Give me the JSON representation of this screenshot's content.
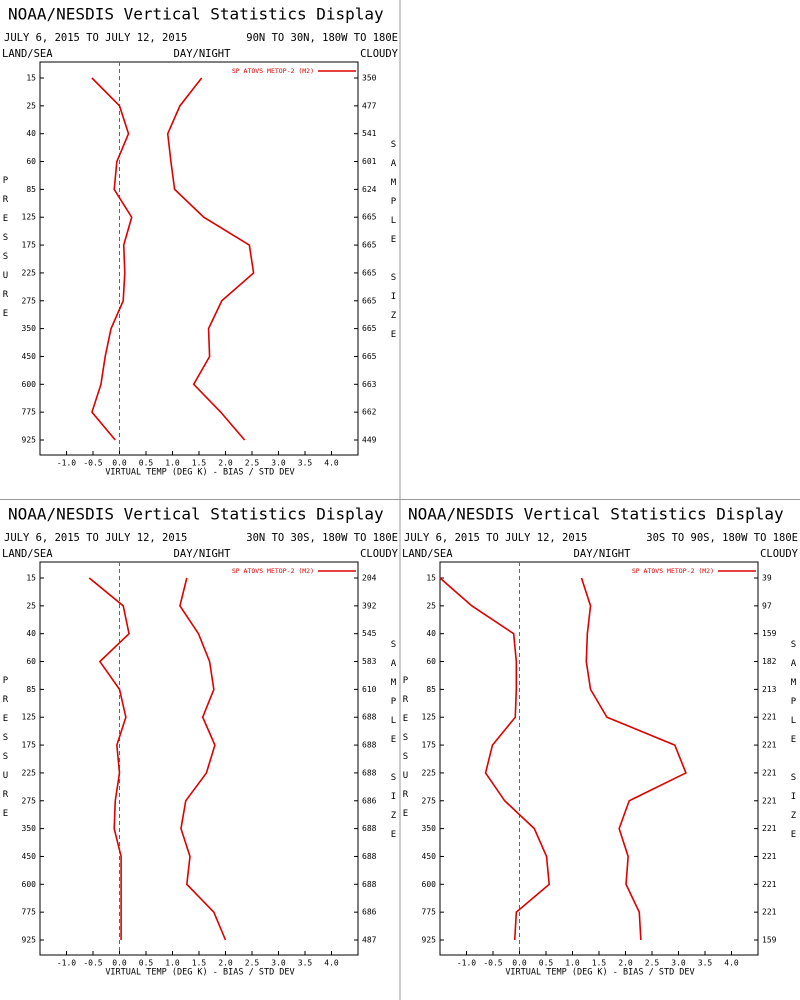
{
  "chart_data": [
    {
      "type": "line",
      "title": "NOAA/NESDIS Vertical Statistics Display",
      "date_range": "JULY 6, 2015 TO JULY 12, 2015",
      "region": "90N TO 30N, 180W TO 180E",
      "land_sea": "LAND/SEA",
      "day_night": "DAY/NIGHT",
      "cloud": "CLOUDY",
      "x_label": "VIRTUAL TEMP (DEG K) - BIAS / STD DEV",
      "y_label": "PRESSURE",
      "y2_label": "SAMPLE SIZE",
      "categories": [
        15,
        25,
        40,
        60,
        85,
        125,
        175,
        225,
        275,
        350,
        450,
        600,
        775,
        925
      ],
      "sample_sizes": [
        350,
        477,
        541,
        601,
        624,
        665,
        665,
        665,
        665,
        665,
        665,
        663,
        662,
        449
      ],
      "series": [
        {
          "name": "SP ATOVS METOP-2 (M2)",
          "color": "#dd0000",
          "values": [
            -0.52,
            0.0,
            0.17,
            -0.05,
            -0.1,
            0.23,
            0.08,
            0.1,
            0.07,
            -0.16,
            -0.27,
            -0.35,
            -0.52,
            -0.08
          ]
        },
        {
          "color": "#dd0000",
          "values": [
            1.55,
            1.14,
            0.91,
            0.97,
            1.04,
            1.59,
            2.45,
            2.53,
            1.93,
            1.68,
            1.7,
            1.4,
            1.91,
            2.36
          ]
        }
      ],
      "xlim": [
        -1.5,
        4.5
      ],
      "xticks": [
        {
          "value": -1,
          "label": "-1.0"
        },
        -0.5,
        {
          "value": 0,
          "label": "0.0"
        },
        0.5,
        {
          "value": 1,
          "label": "1.0"
        },
        1.5,
        {
          "value": 2,
          "label": "2.0"
        },
        2.5,
        {
          "value": 3,
          "label": "3.0"
        },
        3.5,
        {
          "value": 4,
          "label": "4.0"
        }
      ],
      "reference_line": 0,
      "legend": "upper right"
    },
    {
      "type": "line",
      "title": "NOAA/NESDIS Vertical Statistics Display",
      "date_range": "JULY 6, 2015 TO JULY 12, 2015",
      "region": "30N TO 30S, 180W TO 180E",
      "land_sea": "LAND/SEA",
      "day_night": "DAY/NIGHT",
      "cloud": "CLOUDY",
      "x_label": "VIRTUAL TEMP (DEG K) - BIAS / STD DEV",
      "y_label": "PRESSURE",
      "y2_label": "SAMPLE SIZE",
      "categories": [
        15,
        25,
        40,
        60,
        85,
        125,
        175,
        225,
        275,
        350,
        450,
        600,
        775,
        925
      ],
      "sample_sizes": [
        204,
        392,
        545,
        583,
        610,
        688,
        688,
        688,
        686,
        688,
        688,
        688,
        686,
        487
      ],
      "series": [
        {
          "name": "SP ATOVS METOP-2 (M2)",
          "color": "#dd0000",
          "values": [
            -0.57,
            0.07,
            0.18,
            -0.37,
            0.0,
            0.12,
            -0.05,
            0.0,
            -0.08,
            -0.1,
            0.03,
            0.03,
            0.03,
            0.03
          ]
        },
        {
          "color": "#dd0000",
          "values": [
            1.27,
            1.14,
            1.49,
            1.7,
            1.78,
            1.57,
            1.8,
            1.64,
            1.25,
            1.16,
            1.33,
            1.27,
            1.78,
            2.0
          ]
        }
      ],
      "xlim": [
        -1.5,
        4.5
      ],
      "xticks": [
        {
          "value": -1,
          "label": "-1.0"
        },
        -0.5,
        {
          "value": 0,
          "label": "0.0"
        },
        0.5,
        {
          "value": 1,
          "label": "1.0"
        },
        1.5,
        {
          "value": 2,
          "label": "2.0"
        },
        2.5,
        {
          "value": 3,
          "label": "3.0"
        },
        3.5,
        {
          "value": 4,
          "label": "4.0"
        }
      ],
      "reference_line": 0,
      "legend": "upper right"
    },
    {
      "type": "line",
      "title": "NOAA/NESDIS Vertical Statistics Display",
      "date_range": "JULY 6, 2015 TO JULY 12, 2015",
      "region": "30S TO 90S, 180W TO 180E",
      "land_sea": "LAND/SEA",
      "day_night": "DAY/NIGHT",
      "cloud": "CLOUDY",
      "x_label": "VIRTUAL TEMP (DEG K) - BIAS / STD DEV",
      "y_label": "PRESSURE",
      "y2_label": "SAMPLE SIZE",
      "categories": [
        15,
        25,
        40,
        60,
        85,
        125,
        175,
        225,
        275,
        350,
        450,
        600,
        775,
        925
      ],
      "sample_sizes": [
        39,
        97,
        159,
        182,
        213,
        221,
        221,
        221,
        221,
        221,
        221,
        221,
        221,
        159
      ],
      "series": [
        {
          "name": "SP ATOVS METOP-2 (M2)",
          "color": "#dd0000",
          "values": [
            -1.5,
            -0.9,
            -0.11,
            -0.06,
            -0.06,
            -0.08,
            -0.51,
            -0.64,
            -0.28,
            0.28,
            0.51,
            0.56,
            -0.06,
            -0.09
          ]
        },
        {
          "color": "#dd0000",
          "values": [
            1.17,
            1.34,
            1.28,
            1.26,
            1.34,
            1.65,
            2.93,
            3.14,
            2.07,
            1.88,
            2.05,
            2.01,
            2.26,
            2.29
          ]
        }
      ],
      "xlim": [
        -1.5,
        4.5
      ],
      "xticks": [
        {
          "value": -1,
          "label": "-1.0"
        },
        -0.5,
        {
          "value": 0,
          "label": "0.0"
        },
        0.5,
        {
          "value": 1,
          "label": "1.0"
        },
        1.5,
        {
          "value": 2,
          "label": "2.0"
        },
        2.5,
        {
          "value": 3,
          "label": "3.0"
        },
        3.5,
        {
          "value": 4,
          "label": "4.0"
        }
      ],
      "reference_line": 0,
      "legend": "upper right"
    }
  ]
}
